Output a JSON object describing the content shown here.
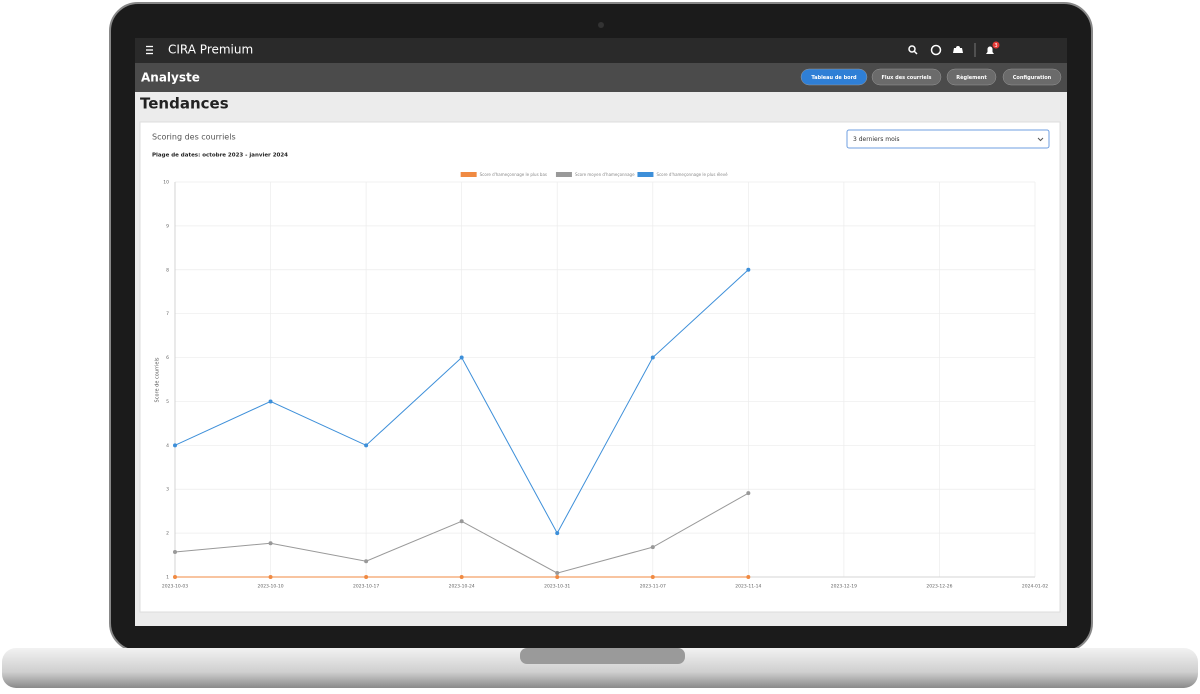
{
  "header": {
    "app_name": "CIRA Premium",
    "notification_count": "3"
  },
  "nav": {
    "title": "Analyste",
    "tabs": [
      "Tableau de bord",
      "Flux des courriels",
      "Règlement",
      "Configuration"
    ]
  },
  "page_title": "Tendances",
  "card": {
    "title": "Scoring des courriels",
    "date_range": "Plage de dates: octobre 2023 - janvier 2024",
    "period_select": "3 derniers mois"
  },
  "chart_data": {
    "type": "line",
    "y_label": "Score de courriels",
    "categories": [
      "2023-10-03",
      "2023-10-10",
      "2023-10-17",
      "2023-10-24",
      "2023-10-31",
      "2023-11-07",
      "2023-11-14",
      "2023-12-19",
      "2023-12-26",
      "2024-01-02"
    ],
    "series": [
      {
        "name": "Score d'hameçonnage le plus bas",
        "color": "#f08a42",
        "values": [
          1,
          1,
          1,
          1,
          1,
          1,
          1,
          null,
          null,
          null
        ]
      },
      {
        "name": "Score moyen d'hameçonnage",
        "color": "#999999",
        "values": [
          1.57,
          1.77,
          1.36,
          2.27,
          1.09,
          1.68,
          2.91,
          null,
          null,
          null
        ]
      },
      {
        "name": "Score d'hameçonnage le plus élevé",
        "color": "#3d8fd9",
        "values": [
          4,
          5,
          4,
          6,
          2,
          6,
          8,
          null,
          null,
          null
        ]
      }
    ],
    "ylim": [
      1,
      10
    ],
    "yticks": [
      1,
      2,
      3,
      4,
      5,
      6,
      7,
      8,
      9,
      10
    ],
    "grid": true,
    "legend": "top"
  }
}
